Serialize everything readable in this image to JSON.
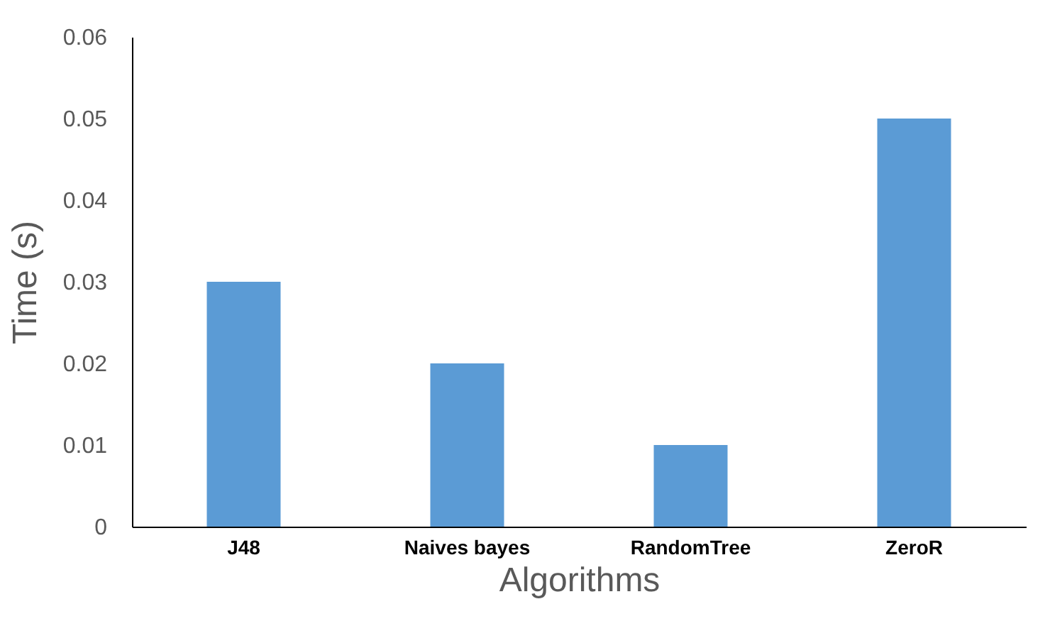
{
  "chart_data": {
    "type": "bar",
    "xlabel": "Algorithms",
    "ylabel": "Time (s)",
    "categories": [
      "J48",
      "Naives bayes",
      "RandomTree",
      "ZeroR"
    ],
    "values": [
      0.03,
      0.02,
      0.01,
      0.05
    ],
    "color": "#5b9bd5",
    "ylim": [
      0,
      0.06
    ],
    "yticks": [
      0,
      0.01,
      0.02,
      0.03,
      0.04,
      0.05,
      0.06
    ],
    "grid": false
  }
}
